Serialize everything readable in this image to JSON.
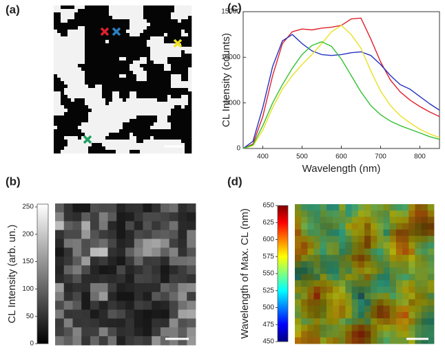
{
  "chart_data": [
    {
      "type": "image",
      "label": "(a)"
    },
    {
      "type": "colormap",
      "label": "(b)",
      "colormap": "gray",
      "ylabel": "CL Intensity (arb. un.)",
      "ylim": [
        0,
        255
      ],
      "yticks": [
        0,
        50,
        100,
        150,
        200,
        250
      ]
    },
    {
      "type": "line",
      "label": "(c)",
      "xlabel": "Wavelength (nm)",
      "ylabel": "CL Intensity (counts)",
      "xlim": [
        350,
        850
      ],
      "xticks": [
        400,
        500,
        600,
        700,
        800
      ],
      "ylim": [
        0,
        15000
      ],
      "yticks": [
        0,
        5000,
        10000,
        15000
      ],
      "x": [
        350,
        375,
        400,
        425,
        450,
        475,
        500,
        525,
        550,
        575,
        600,
        625,
        650,
        675,
        700,
        725,
        750,
        775,
        800,
        825,
        850
      ],
      "series": [
        {
          "color": "#e0202a",
          "values": [
            0,
            500,
            3500,
            8000,
            11500,
            12800,
            13100,
            13000,
            13200,
            13300,
            13500,
            14200,
            14300,
            12000,
            9500,
            7500,
            6200,
            5300,
            4600,
            4000,
            3500
          ]
        },
        {
          "color": "#2430c0",
          "values": [
            0,
            800,
            4500,
            9000,
            11800,
            12500,
            11500,
            10700,
            10300,
            10200,
            10300,
            10500,
            10600,
            10200,
            9200,
            8000,
            7000,
            6500,
            5700,
            4900,
            4200
          ]
        },
        {
          "color": "#e8e020",
          "values": [
            0,
            300,
            2000,
            4500,
            6500,
            8000,
            9200,
            10300,
            11500,
            12800,
            13500,
            12500,
            11000,
            8500,
            6300,
            4700,
            3600,
            2800,
            2100,
            1600,
            1200
          ]
        },
        {
          "color": "#30c030",
          "values": [
            0,
            400,
            2500,
            5000,
            7000,
            8800,
            10300,
            11300,
            11700,
            11200,
            9800,
            8000,
            6200,
            4700,
            3700,
            3000,
            2500,
            2100,
            1700,
            1300,
            1000
          ]
        }
      ]
    },
    {
      "type": "colormap",
      "label": "(d)",
      "colormap": "jet",
      "ylabel": "Wavelength of Max. CL (nm)",
      "ylim": [
        450,
        650
      ],
      "yticks": [
        450,
        475,
        500,
        525,
        550,
        575,
        600,
        625,
        650
      ]
    }
  ]
}
